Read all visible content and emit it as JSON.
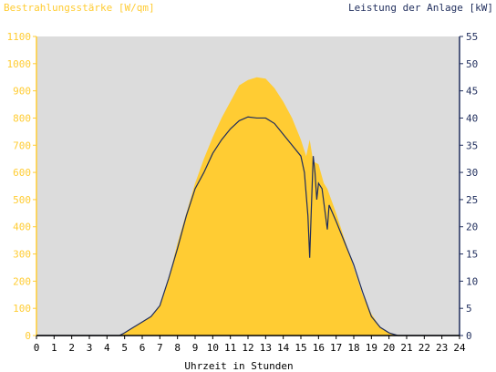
{
  "chart_data": {
    "type": "area",
    "left_axis_label": "Bestrahlungsstärke [W/qm]",
    "right_axis_label": "Leistung der Anlage [kW]",
    "xlabel": "Uhrzeit in Stunden",
    "x_range": [
      0,
      24
    ],
    "x_ticks": [
      "0",
      "1",
      "2",
      "3",
      "4",
      "5",
      "6",
      "7",
      "8",
      "9",
      "10",
      "11",
      "12",
      "13",
      "14",
      "15",
      "16",
      "17",
      "18",
      "19",
      "20",
      "21",
      "22",
      "23",
      "24"
    ],
    "y_left_range": [
      0,
      1100
    ],
    "y_left_ticks": [
      "0",
      "100",
      "200",
      "300",
      "400",
      "500",
      "600",
      "700",
      "800",
      "900",
      "1000",
      "1100"
    ],
    "y_right_range": [
      0,
      55
    ],
    "y_right_ticks": [
      "0",
      "5",
      "10",
      "15",
      "20",
      "25",
      "30",
      "35",
      "40",
      "45",
      "50",
      "55"
    ],
    "grid": false,
    "series": [
      {
        "name": "Bestrahlungsstärke [W/qm]",
        "axis": "left",
        "style": "area",
        "color": "#ffcc33",
        "x": [
          0,
          4.7,
          5.0,
          5.5,
          6.0,
          6.5,
          7.0,
          7.5,
          8.0,
          8.5,
          9.0,
          9.5,
          10.0,
          10.5,
          11.0,
          11.5,
          12.0,
          12.5,
          13.0,
          13.5,
          14.0,
          14.5,
          15.0,
          15.3,
          15.5,
          15.7,
          16.0,
          16.3,
          16.5,
          17.0,
          17.5,
          18.0,
          18.5,
          19.0,
          19.5,
          20.0,
          20.5,
          21,
          24
        ],
        "y": [
          0,
          0,
          10,
          30,
          50,
          70,
          110,
          210,
          340,
          450,
          560,
          650,
          730,
          800,
          860,
          920,
          940,
          950,
          945,
          910,
          860,
          800,
          720,
          660,
          720,
          640,
          630,
          560,
          540,
          450,
          350,
          250,
          150,
          80,
          30,
          10,
          0,
          0,
          0
        ]
      },
      {
        "name": "Leistung der Anlage [kW]",
        "axis": "right",
        "style": "line",
        "color": "#1f2d5c",
        "x": [
          0,
          4.7,
          5.0,
          5.5,
          6.0,
          6.5,
          7.0,
          7.5,
          8.0,
          8.5,
          9.0,
          9.5,
          10.0,
          10.5,
          11.0,
          11.5,
          12.0,
          12.5,
          13.0,
          13.5,
          14.0,
          14.5,
          15.0,
          15.2,
          15.4,
          15.5,
          15.6,
          15.7,
          15.8,
          15.9,
          16.0,
          16.2,
          16.4,
          16.5,
          16.6,
          17.0,
          17.5,
          18.0,
          18.5,
          19.0,
          19.5,
          20.0,
          20.5,
          21,
          24
        ],
        "y": [
          0,
          0,
          0.5,
          1.5,
          2.5,
          3.5,
          5.5,
          10.5,
          16,
          22,
          27,
          30,
          33.5,
          36,
          38,
          39.5,
          40.2,
          40,
          40,
          39,
          37,
          35,
          33,
          30,
          22,
          14.3,
          24,
          33,
          30,
          25,
          28,
          27,
          22,
          19.5,
          24,
          21,
          17,
          13,
          8,
          3.5,
          1.5,
          0.5,
          0,
          0,
          0
        ]
      }
    ]
  },
  "colors": {
    "plot_background": "#dcdcdc",
    "left_axis_text": "#ffcc33",
    "right_axis_text": "#1f2d5c",
    "x_axis_text": "#000000"
  }
}
